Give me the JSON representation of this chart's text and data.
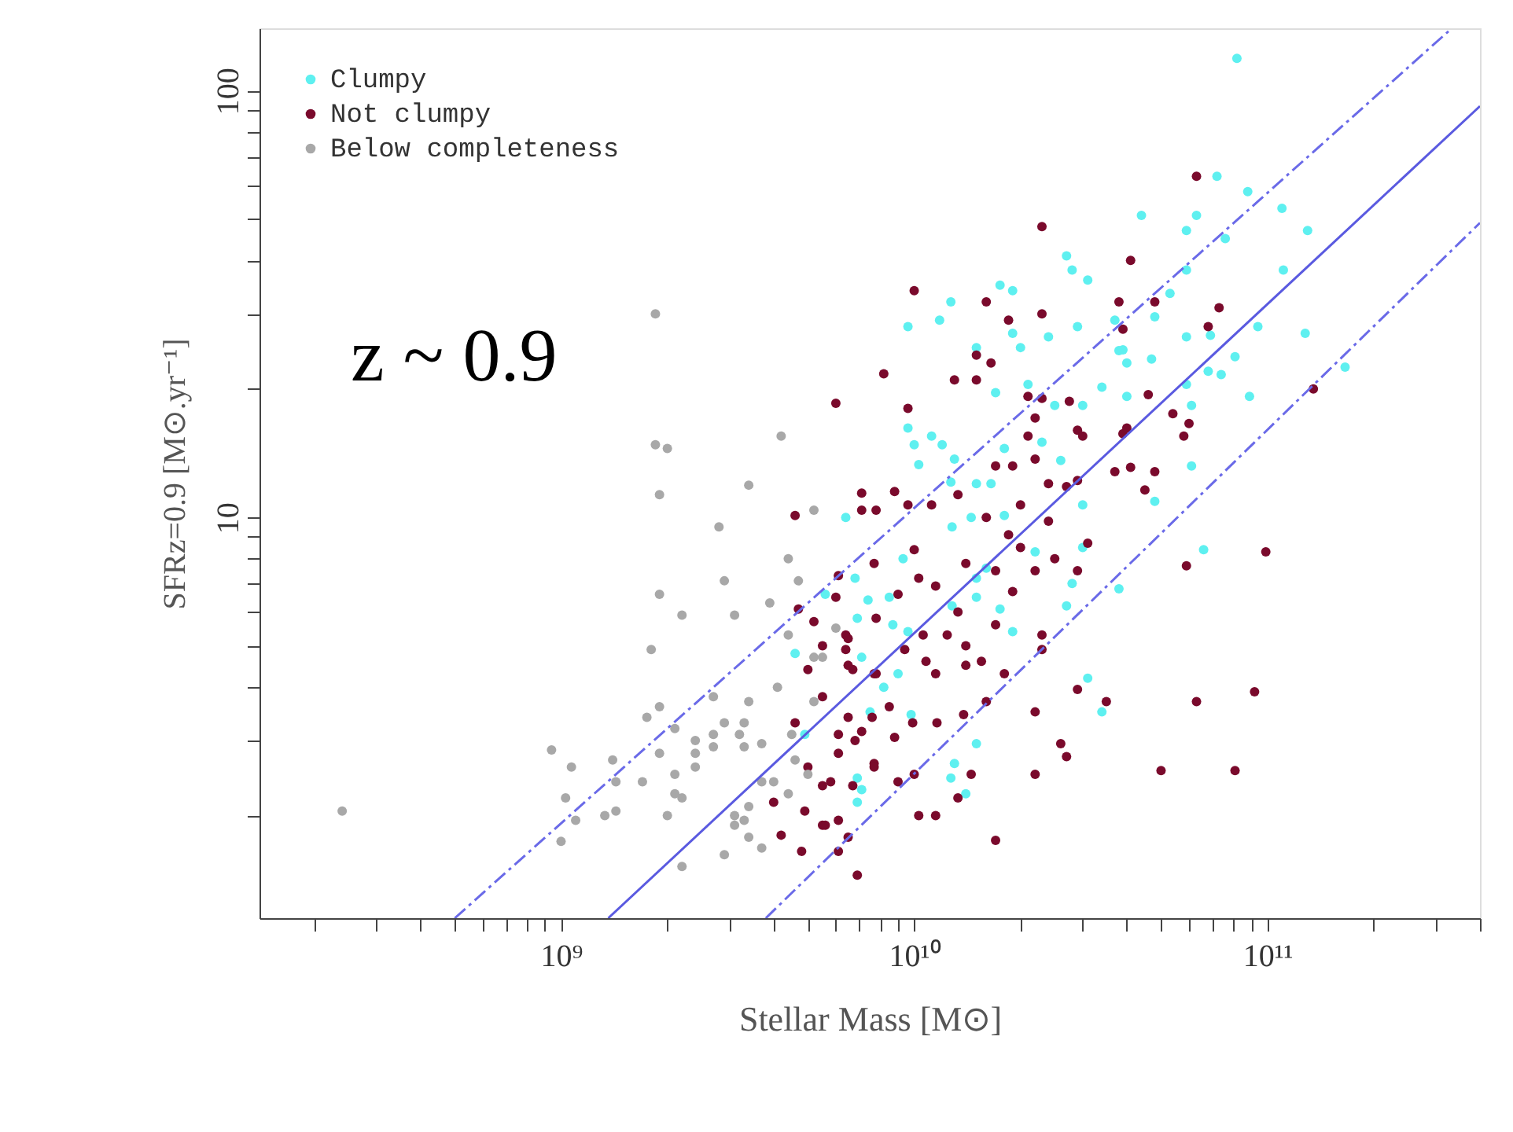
{
  "chart_data": {
    "type": "scatter",
    "xlabel": "Stellar Mass [M⊙]",
    "ylabel": "SFRz=0.9 [M⊙.yr⁻¹]",
    "annotations": [
      "z ~ 0.9"
    ],
    "log": "xy",
    "grid": false,
    "legend": "top left",
    "marker": "circle",
    "xlim": [
      140000000.0,
      400000000000.0
    ],
    "ylim": [
      1.15,
      140
    ],
    "xticks": [
      {
        "value": 200000000.0,
        "label": null
      },
      {
        "value": 300000000.0,
        "label": null
      },
      {
        "value": 400000000.0,
        "label": null
      },
      {
        "value": 500000000.0,
        "label": null
      },
      {
        "value": 600000000.0,
        "label": null
      },
      {
        "value": 700000000.0,
        "label": null
      },
      {
        "value": 800000000.0,
        "label": null
      },
      {
        "value": 900000000.0,
        "label": null
      },
      {
        "value": 1000000000.0,
        "label": "10⁹"
      },
      {
        "value": 2000000000.0,
        "label": null
      },
      {
        "value": 3000000000.0,
        "label": null
      },
      {
        "value": 4000000000.0,
        "label": null
      },
      {
        "value": 5000000000.0,
        "label": null
      },
      {
        "value": 6000000000.0,
        "label": null
      },
      {
        "value": 7000000000.0,
        "label": null
      },
      {
        "value": 8000000000.0,
        "label": null
      },
      {
        "value": 9000000000.0,
        "label": null
      },
      {
        "value": 10000000000.0,
        "label": "10¹⁰"
      },
      {
        "value": 20000000000.0,
        "label": null
      },
      {
        "value": 30000000000.0,
        "label": null
      },
      {
        "value": 40000000000.0,
        "label": null
      },
      {
        "value": 50000000000.0,
        "label": null
      },
      {
        "value": 60000000000.0,
        "label": null
      },
      {
        "value": 70000000000.0,
        "label": null
      },
      {
        "value": 80000000000.0,
        "label": null
      },
      {
        "value": 90000000000.0,
        "label": null
      },
      {
        "value": 100000000000.0,
        "label": "10¹¹"
      },
      {
        "value": 200000000000.0,
        "label": null
      },
      {
        "value": 300000000000.0,
        "label": null
      },
      {
        "value": 400000000000.0,
        "label": null
      }
    ],
    "yticks": [
      {
        "value": 2,
        "label": null
      },
      {
        "value": 3,
        "label": null
      },
      {
        "value": 4,
        "label": null
      },
      {
        "value": 5,
        "label": null
      },
      {
        "value": 6,
        "label": null
      },
      {
        "value": 7,
        "label": null
      },
      {
        "value": 8,
        "label": null
      },
      {
        "value": 9,
        "label": null
      },
      10,
      {
        "value": 20,
        "label": null
      },
      {
        "value": 30,
        "label": null
      },
      {
        "value": 40,
        "label": null
      },
      {
        "value": 50,
        "label": null
      },
      {
        "value": 60,
        "label": null
      },
      {
        "value": 70,
        "label": null
      },
      {
        "value": 80,
        "label": null
      },
      {
        "value": 90,
        "label": null
      },
      100
    ],
    "series": [
      {
        "name": "Clumpy",
        "color": "#5ef0f0",
        "x": [
          6400000000.0,
          6800000000.0,
          5600000000.0,
          7400000000.0,
          6900000000.0,
          4600000000.0,
          7100000000.0,
          8200000000.0,
          7500000000.0,
          4900000000.0,
          6900000000.0,
          6900000000.0,
          27000000000.0,
          28000000000.0,
          31000000000.0,
          17500000000.0,
          19000000000.0,
          12700000000.0,
          9600000000.0,
          11800000000.0,
          15000000000.0,
          19000000000.0,
          20000000000.0,
          24000000000.0,
          29000000000.0,
          39000000000.0,
          17000000000.0,
          21000000000.0,
          25000000000.0,
          30000000000.0,
          34000000000.0,
          9600000000.0,
          11200000000.0,
          10000000000.0,
          12000000000.0,
          10300000000.0,
          13000000000.0,
          18000000000.0,
          23000000000.0,
          26000000000.0,
          12700000000.0,
          15000000000.0,
          16500000000.0,
          12800000000.0,
          14500000000.0,
          18000000000.0,
          30000000000.0,
          9300000000.0,
          15000000000.0,
          16000000000.0,
          22000000000.0,
          30000000000.0,
          8500000000.0,
          15000000000.0,
          17500000000.0,
          28000000000.0,
          38000000000.0,
          8700000000.0,
          9600000000.0,
          12800000000.0,
          19000000000.0,
          27000000000.0,
          9000000000.0,
          9800000000.0,
          31000000000.0,
          34000000000.0,
          15000000000.0,
          13000000000.0,
          12700000000.0,
          14000000000.0,
          7100000000.0,
          82000000000.0,
          72000000000.0,
          88000000000.0,
          44000000000.0,
          63000000000.0,
          59000000000.0,
          110000000000.0,
          130000000000.0,
          76000000000.0,
          59000000000.0,
          111000000000.0,
          53000000000.0,
          48000000000.0,
          37000000000.0,
          38000000000.0,
          40000000000.0,
          47000000000.0,
          59000000000.0,
          69000000000.0,
          94000000000.0,
          128000000000.0,
          166000000000.0,
          81000000000.0,
          68000000000.0,
          74000000000.0,
          59000000000.0,
          40000000000.0,
          61000000000.0,
          89000000000.0,
          61000000000.0,
          48000000000.0,
          66000000000.0
        ],
        "values": [
          10,
          7.2,
          6.6,
          6.4,
          5.8,
          4.8,
          4.7,
          4.0,
          3.5,
          3.1,
          2.45,
          2.15,
          41,
          38,
          36,
          35,
          34,
          32,
          28,
          29,
          25,
          27,
          25,
          26.5,
          28,
          24.7,
          19.6,
          20.5,
          18.3,
          18.3,
          20.2,
          16.2,
          15.5,
          14.8,
          14.8,
          13.3,
          13.7,
          14.5,
          15,
          13.6,
          12.1,
          12,
          12,
          9.5,
          10,
          10.1,
          10.7,
          8.0,
          7.2,
          7.6,
          8.3,
          8.5,
          6.5,
          6.5,
          6.1,
          7.0,
          6.8,
          5.6,
          5.4,
          6.2,
          5.4,
          6.2,
          4.3,
          3.45,
          4.2,
          3.5,
          2.95,
          2.65,
          2.45,
          2.25,
          2.3,
          119,
          63,
          58,
          51,
          51,
          47,
          53,
          47,
          45,
          38,
          38,
          33.5,
          29.5,
          29,
          24.6,
          23,
          23.5,
          26.5,
          26.7,
          28,
          27,
          22.5,
          23.8,
          22,
          21.6,
          20.5,
          19.2,
          18.3,
          19.2,
          13.2,
          10.9,
          8.4
        ]
      },
      {
        "name": "Not clumpy",
        "color": "#7a0a2c",
        "x": [
          6000000000.0,
          8200000000.0,
          7100000000.0,
          4600000000.0,
          7100000000.0,
          7700000000.0,
          6100000000.0,
          6000000000.0,
          4700000000.0,
          5200000000.0,
          6400000000.0,
          5500000000.0,
          6400000000.0,
          5000000000.0,
          6700000000.0,
          7700000000.0,
          5500000000.0,
          4600000000.0,
          6500000000.0,
          7100000000.0,
          6100000000.0,
          6100000000.0,
          5000000000.0,
          7700000000.0,
          5500000000.0,
          6700000000.0,
          4000000000.0,
          4900000000.0,
          5500000000.0,
          6100000000.0,
          4200000000.0,
          4800000000.0,
          6100000000.0,
          6500000000.0,
          6900000000.0,
          23000000000.0,
          10000000000.0,
          16000000000.0,
          18500000000.0,
          23000000000.0,
          38000000000.0,
          39000000000.0,
          15000000000.0,
          16500000000.0,
          13000000000.0,
          15000000000.0,
          9600000000.0,
          21000000000.0,
          23000000000.0,
          22000000000.0,
          27500000000.0,
          29000000000.0,
          30000000000.0,
          21000000000.0,
          17000000000.0,
          19000000000.0,
          22000000000.0,
          24000000000.0,
          27000000000.0,
          29000000000.0,
          37000000000.0,
          39000000000.0,
          8800000000.0,
          7800000000.0,
          9600000000.0,
          11200000000.0,
          13300000000.0,
          16000000000.0,
          20000000000.0,
          24000000000.0,
          18500000000.0,
          20000000000.0,
          22000000000.0,
          25000000000.0,
          29000000000.0,
          31000000000.0,
          10000000000.0,
          10300000000.0,
          11500000000.0,
          14000000000.0,
          17000000000.0,
          19000000000.0,
          9000000000.0,
          13300000000.0,
          7800000000.0,
          17000000000.0,
          23000000000.0,
          10600000000.0,
          12400000000.0,
          14000000000.0,
          23000000000.0,
          6500000000.0,
          9400000000.0,
          15500000000.0,
          10800000000.0,
          18000000000.0,
          11500000000.0,
          14000000000.0,
          7800000000.0,
          6500000000.0,
          7600000000.0,
          8500000000.0,
          9900000000.0,
          11600000000.0,
          13800000000.0,
          16000000000.0,
          22000000000.0,
          29000000000.0,
          35000000000.0,
          6800000000.0,
          8800000000.0,
          7700000000.0,
          9000000000.0,
          10000000000.0,
          14500000000.0,
          22000000000.0,
          26000000000.0,
          27000000000.0,
          5800000000.0,
          10300000000.0,
          11500000000.0,
          13300000000.0,
          5600000000.0,
          17000000000.0,
          63000000000.0,
          41000000000.0,
          48000000000.0,
          73000000000.0,
          68000000000.0,
          46000000000.0,
          40000000000.0,
          54000000000.0,
          60000000000.0,
          58000000000.0,
          41000000000.0,
          48000000000.0,
          45000000000.0,
          135000000000.0,
          59000000000.0,
          99000000000.0,
          63000000000.0,
          92000000000.0,
          50000000000.0,
          81000000000.0
        ],
        "values": [
          18.5,
          21.7,
          11.4,
          10.1,
          10.4,
          7.8,
          7.3,
          6.5,
          6.1,
          5.7,
          5.3,
          5.0,
          4.9,
          4.4,
          4.4,
          4.3,
          3.8,
          3.3,
          3.4,
          3.15,
          3.1,
          2.8,
          2.6,
          2.65,
          2.35,
          2.35,
          2.15,
          2.05,
          1.9,
          1.95,
          1.8,
          1.65,
          1.65,
          1.78,
          1.45,
          48,
          34,
          32,
          29,
          30,
          32,
          27.6,
          24,
          23,
          21,
          21,
          18,
          19.2,
          19,
          17.1,
          18.7,
          16,
          15.5,
          15.5,
          13.2,
          13.2,
          13.7,
          12,
          11.8,
          12.2,
          12.8,
          15.7,
          11.5,
          10.4,
          10.7,
          10.7,
          11.3,
          10,
          10.7,
          9.8,
          9.1,
          8.5,
          7.5,
          8.0,
          7.5,
          8.7,
          8.4,
          7.2,
          6.9,
          7.8,
          7.5,
          6.7,
          6.6,
          6.0,
          5.8,
          5.6,
          5.3,
          5.3,
          5.3,
          5.0,
          4.9,
          5.2,
          4.9,
          4.6,
          4.6,
          4.3,
          4.3,
          4.5,
          4.3,
          4.5,
          3.4,
          3.6,
          3.3,
          3.3,
          3.45,
          3.7,
          3.5,
          3.95,
          3.7,
          3.0,
          3.05,
          2.6,
          2.4,
          2.5,
          2.5,
          2.5,
          2.95,
          2.75,
          2.4,
          2.0,
          2.0,
          2.2,
          1.9,
          1.75,
          63,
          40,
          32,
          31,
          28,
          19.4,
          16.2,
          17.5,
          16.6,
          15.5,
          13.1,
          12.8,
          11.6,
          20,
          7.7,
          8.3,
          3.7,
          3.9,
          2.55,
          2.55
        ]
      },
      {
        "name": "Below completeness",
        "color": "#a8a8a8",
        "x": [
          240000000.0,
          1850000000.0,
          1850000000.0,
          2000000000.0,
          1900000000.0,
          4200000000.0,
          3400000000.0,
          2800000000.0,
          5200000000.0,
          4400000000.0,
          2900000000.0,
          4700000000.0,
          1900000000.0,
          2200000000.0,
          3100000000.0,
          3900000000.0,
          1800000000.0,
          4400000000.0,
          5500000000.0,
          4100000000.0,
          2700000000.0,
          3400000000.0,
          1750000000.0,
          1900000000.0,
          2100000000.0,
          2900000000.0,
          3300000000.0,
          2400000000.0,
          2700000000.0,
          3200000000.0,
          3700000000.0,
          940000000.0,
          1070000000.0,
          1400000000.0,
          1900000000.0,
          2400000000.0,
          2700000000.0,
          1430000000.0,
          1700000000.0,
          2100000000.0,
          2400000000.0,
          3300000000.0,
          3700000000.0,
          4000000000.0,
          4600000000.0,
          5000000000.0,
          2100000000.0,
          2200000000.0,
          1030000000.0,
          1100000000.0,
          1430000000.0,
          1330000000.0,
          2000000000.0,
          3100000000.0,
          3400000000.0,
          3300000000.0,
          3100000000.0,
          1000000000.0,
          3400000000.0,
          3700000000.0,
          2900000000.0,
          2200000000.0,
          4400000000.0,
          4500000000.0,
          5200000000.0,
          6000000000.0,
          5200000000.0
        ],
        "values": [
          2.05,
          30,
          14.8,
          14.5,
          11.3,
          15.5,
          11.9,
          9.5,
          10.4,
          8.0,
          7.1,
          7.1,
          6.6,
          5.9,
          5.9,
          6.3,
          4.9,
          5.3,
          4.7,
          4.0,
          3.8,
          3.7,
          3.4,
          3.6,
          3.2,
          3.3,
          3.3,
          3.0,
          3.1,
          3.1,
          2.95,
          2.85,
          2.6,
          2.7,
          2.8,
          2.8,
          2.9,
          2.4,
          2.4,
          2.5,
          2.6,
          2.9,
          2.4,
          2.4,
          2.7,
          2.5,
          2.25,
          2.2,
          2.2,
          1.95,
          2.05,
          2.0,
          2.0,
          2.0,
          2.1,
          1.95,
          1.9,
          1.74,
          1.78,
          1.68,
          1.62,
          1.52,
          2.25,
          3.1,
          3.7,
          5.5,
          4.7
        ]
      },
      {
        "type": "line",
        "marker": "none",
        "color": "#5a5ae0",
        "line_style": "solid",
        "x": [
          1360000000.0,
          400000000000.0
        ],
        "values": [
          1.15,
          92
        ]
      },
      {
        "type": "line",
        "marker": "none",
        "color": "#6a6ae8",
        "line_style": "dashed",
        "x": [
          500000000.0,
          333000000000.0
        ],
        "values": [
          1.15,
          140
        ]
      },
      {
        "type": "line",
        "marker": "none",
        "color": "#6a6ae8",
        "line_style": "dashed",
        "x": [
          3800000000.0,
          400000000000.0
        ],
        "values": [
          1.15,
          49
        ]
      }
    ]
  }
}
